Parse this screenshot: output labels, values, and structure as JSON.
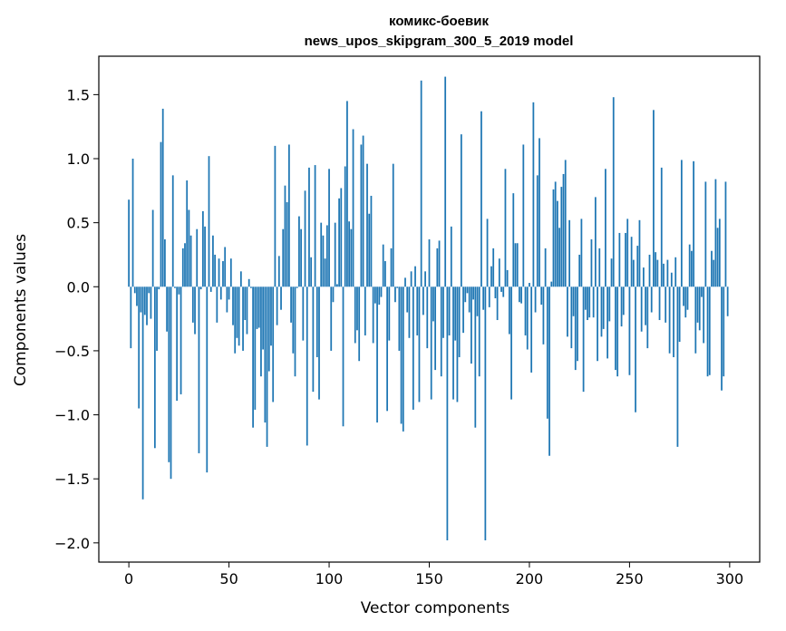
{
  "chart_data": {
    "type": "bar",
    "title": "комикс-боевик",
    "subtitle": "news_upos_skipgram_300_5_2019 model",
    "xlabel": "Vector components",
    "ylabel": "Components values",
    "xlim": [
      -15,
      315
    ],
    "ylim": [
      -2.15,
      1.8
    ],
    "xticks": [
      0,
      50,
      100,
      150,
      200,
      250,
      300
    ],
    "yticks": [
      -2.0,
      -1.5,
      -1.0,
      -0.5,
      0.0,
      0.5,
      1.0,
      1.5
    ],
    "ytick_labels": [
      "−2.0",
      "−1.5",
      "−1.0",
      "−0.5",
      "0.0",
      "0.5",
      "1.0",
      "1.5"
    ],
    "bar_color": "#1f77b4",
    "grid": false,
    "values": [
      0.68,
      -0.48,
      1.0,
      -0.05,
      -0.15,
      -0.95,
      -0.2,
      -1.66,
      -0.22,
      -0.3,
      -0.05,
      -0.25,
      0.6,
      -1.26,
      -0.5,
      -0.02,
      1.13,
      1.39,
      0.37,
      -0.35,
      -1.37,
      -1.5,
      0.87,
      -0.01,
      -0.89,
      -0.06,
      -0.84,
      0.3,
      0.34,
      0.83,
      0.6,
      0.4,
      -0.28,
      -0.37,
      0.45,
      -1.3,
      -0.02,
      0.59,
      0.47,
      -1.45,
      1.02,
      -0.04,
      0.4,
      0.25,
      -0.28,
      0.22,
      -0.1,
      0.2,
      0.31,
      -0.2,
      -0.1,
      0.22,
      -0.3,
      -0.52,
      -0.4,
      -0.46,
      0.12,
      -0.5,
      -0.26,
      -0.37,
      0.06,
      -0.01,
      -1.1,
      -0.96,
      -0.33,
      -0.32,
      -0.7,
      -0.49,
      -1.06,
      -1.25,
      -0.66,
      -0.46,
      -0.9,
      1.1,
      -0.3,
      0.24,
      -0.18,
      0.45,
      0.79,
      0.66,
      1.11,
      -0.28,
      -0.52,
      -0.7,
      -0.01,
      0.55,
      0.45,
      -0.42,
      0.75,
      -1.24,
      0.93,
      0.23,
      -0.82,
      0.95,
      -0.55,
      -0.88,
      0.5,
      0.4,
      0.22,
      0.48,
      0.92,
      -0.5,
      -0.12,
      0.5,
      0.02,
      0.69,
      0.77,
      -1.09,
      0.94,
      1.45,
      0.51,
      0.45,
      1.23,
      -0.44,
      -0.34,
      -0.58,
      1.11,
      1.18,
      -0.38,
      0.96,
      0.57,
      0.71,
      -0.44,
      -0.13,
      -1.06,
      -0.14,
      -0.08,
      0.33,
      0.2,
      -0.97,
      -0.42,
      0.3,
      0.96,
      -0.12,
      -0.01,
      -0.5,
      -1.07,
      -1.13,
      0.07,
      -0.2,
      -0.4,
      0.12,
      -0.96,
      0.16,
      -0.38,
      -0.9,
      1.61,
      -0.22,
      0.12,
      -0.48,
      0.37,
      -0.88,
      -0.27,
      -0.65,
      0.3,
      0.36,
      -0.7,
      -0.4,
      1.64,
      -1.98,
      -0.38,
      0.47,
      -0.88,
      -0.42,
      -0.9,
      -0.55,
      1.19,
      -0.36,
      -0.12,
      -0.05,
      -0.2,
      -0.6,
      -0.1,
      -1.1,
      -0.23,
      -0.7,
      1.37,
      -0.18,
      -1.98,
      0.53,
      -0.16,
      0.16,
      0.3,
      -0.09,
      -0.26,
      0.22,
      -0.04,
      -0.08,
      0.92,
      0.13,
      -0.37,
      -0.88,
      0.73,
      0.34,
      0.34,
      -0.12,
      -0.13,
      1.11,
      -0.38,
      -0.49,
      0.03,
      -0.67,
      1.44,
      -0.2,
      0.87,
      1.16,
      -0.14,
      -0.45,
      0.3,
      -1.03,
      -1.32,
      0.04,
      0.76,
      0.82,
      0.67,
      0.46,
      0.78,
      0.88,
      0.99,
      -0.39,
      0.52,
      -0.48,
      -0.23,
      -0.65,
      -0.58,
      0.25,
      0.53,
      -0.82,
      -0.18,
      -0.26,
      -0.24,
      0.37,
      -0.24,
      0.7,
      -0.58,
      0.3,
      -0.39,
      -0.33,
      0.92,
      -0.56,
      -0.27,
      0.22,
      1.48,
      -0.65,
      -0.7,
      0.42,
      -0.31,
      -0.22,
      0.42,
      0.53,
      -0.69,
      0.39,
      0.21,
      -0.98,
      0.32,
      0.52,
      -0.35,
      0.15,
      -0.3,
      -0.48,
      0.25,
      -0.2,
      1.38,
      0.27,
      0.21,
      -0.26,
      0.93,
      0.18,
      -0.28,
      0.21,
      -0.52,
      0.11,
      -0.55,
      0.23,
      -1.25,
      -0.43,
      0.99,
      -0.15,
      -0.24,
      -0.18,
      0.33,
      0.28,
      0.98,
      -0.52,
      -0.28,
      -0.34,
      -0.08,
      -0.44,
      0.82,
      -0.7,
      -0.69,
      0.28,
      0.21,
      0.84,
      0.46,
      0.53,
      -0.81,
      -0.7,
      0.82,
      -0.23
    ]
  }
}
